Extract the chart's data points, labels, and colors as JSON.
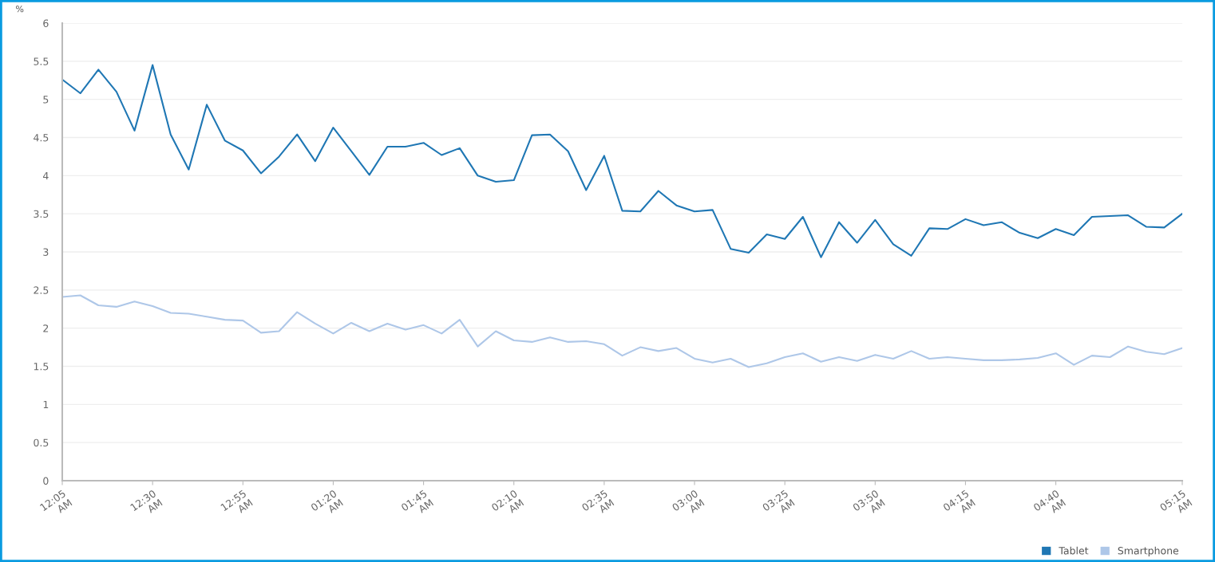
{
  "chart_data": {
    "type": "line",
    "ylabel": "%",
    "categories": [
      "12:05 AM",
      null,
      null,
      null,
      null,
      "12:30 AM",
      null,
      null,
      null,
      null,
      "12:55 AM",
      null,
      null,
      null,
      null,
      "01:20 AM",
      null,
      null,
      null,
      null,
      "01:45 AM",
      null,
      null,
      null,
      null,
      "02:10 AM",
      null,
      null,
      null,
      null,
      "02:35 AM",
      null,
      null,
      null,
      null,
      "03:00 AM",
      null,
      null,
      null,
      null,
      "03:25 AM",
      null,
      null,
      null,
      null,
      "03:50 AM",
      null,
      null,
      null,
      null,
      "04:15 AM",
      null,
      null,
      null,
      null,
      "04:40 AM",
      null,
      null,
      null,
      null,
      null,
      null,
      "05:15 AM"
    ],
    "series": [
      {
        "name": "Tablet",
        "color": "#1f77b4",
        "values": [
          5.26,
          5.08,
          5.39,
          5.1,
          4.59,
          5.45,
          4.54,
          4.08,
          4.93,
          4.46,
          4.33,
          4.03,
          4.25,
          4.54,
          4.19,
          4.63,
          4.32,
          4.01,
          4.38,
          4.38,
          4.43,
          4.27,
          4.36,
          4.0,
          3.92,
          3.94,
          4.53,
          4.54,
          4.32,
          3.81,
          4.26,
          3.54,
          3.53,
          3.8,
          3.61,
          3.53,
          3.55,
          3.04,
          2.99,
          3.23,
          3.17,
          3.46,
          2.93,
          3.39,
          3.12,
          3.42,
          3.1,
          2.95,
          3.31,
          3.3,
          3.43,
          3.35,
          3.39,
          3.25,
          3.18,
          3.3,
          3.22,
          3.46,
          3.47,
          3.48,
          3.33,
          3.32,
          3.5
        ]
      },
      {
        "name": "Smartphone",
        "color": "#aec7e8",
        "values": [
          2.41,
          2.43,
          2.3,
          2.28,
          2.35,
          2.29,
          2.2,
          2.19,
          2.15,
          2.11,
          2.1,
          1.94,
          1.96,
          2.21,
          2.06,
          1.93,
          2.07,
          1.96,
          2.06,
          1.98,
          2.04,
          1.93,
          2.11,
          1.76,
          1.96,
          1.84,
          1.82,
          1.88,
          1.82,
          1.83,
          1.79,
          1.64,
          1.75,
          1.7,
          1.74,
          1.6,
          1.55,
          1.6,
          1.49,
          1.54,
          1.62,
          1.67,
          1.56,
          1.62,
          1.57,
          1.65,
          1.6,
          1.7,
          1.6,
          1.62,
          1.6,
          1.58,
          1.58,
          1.59,
          1.61,
          1.67,
          1.52,
          1.64,
          1.62,
          1.76,
          1.69,
          1.66,
          1.74
        ]
      }
    ],
    "ylim": [
      0,
      6
    ],
    "yticks": [
      0,
      0.5,
      1,
      1.5,
      2,
      2.5,
      3,
      3.5,
      4,
      4.5,
      5,
      5.5,
      6
    ],
    "grid": "y",
    "legend": "bottom right",
    "marker": "none",
    "line_style": "solid"
  }
}
